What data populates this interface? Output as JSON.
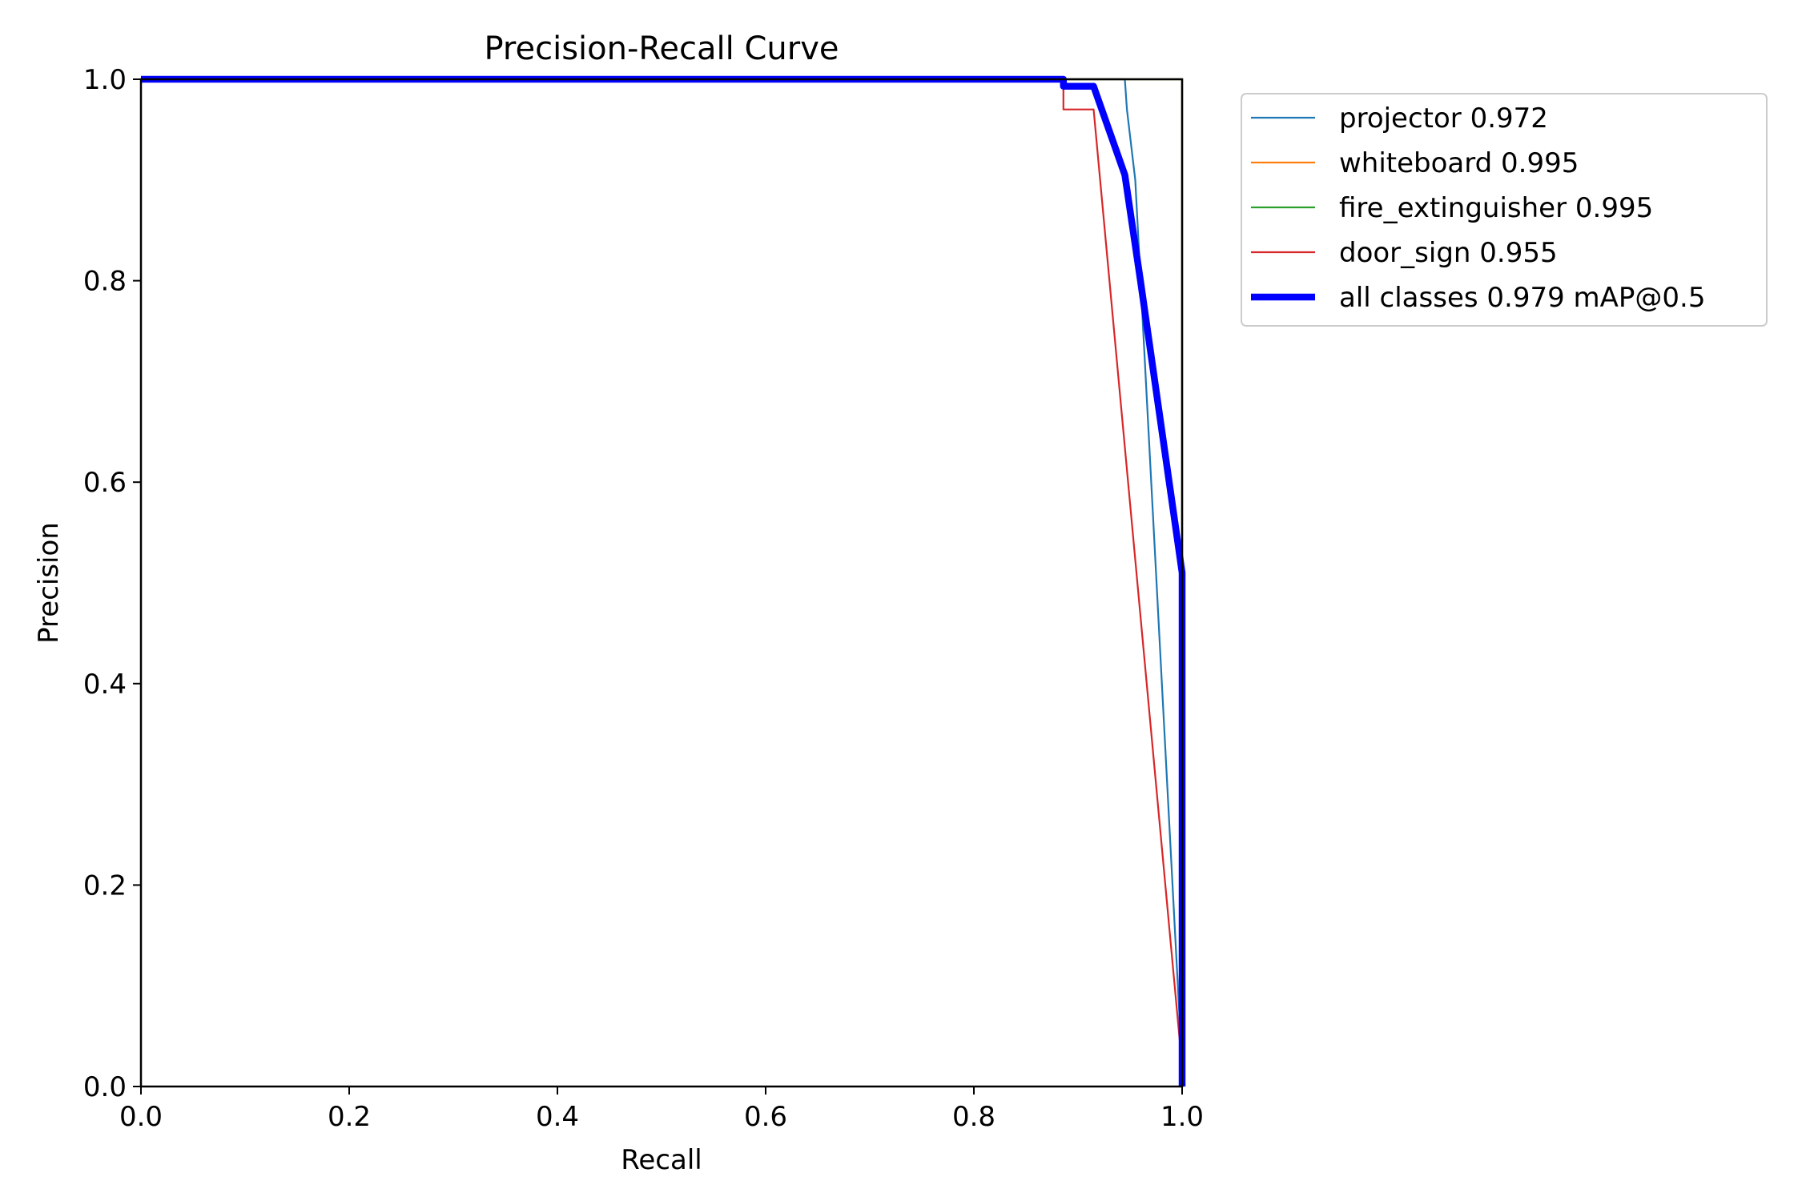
{
  "chart_data": {
    "type": "line",
    "title": "Precision-Recall Curve",
    "xlabel": "Recall",
    "ylabel": "Precision",
    "xlim": [
      0,
      1
    ],
    "ylim": [
      0,
      1
    ],
    "xticks": [
      "0.0",
      "0.2",
      "0.4",
      "0.6",
      "0.8",
      "1.0"
    ],
    "yticks": [
      "0.0",
      "0.2",
      "0.4",
      "0.6",
      "0.8",
      "1.0"
    ],
    "grid": false,
    "legend_position": "outside-top-right",
    "series": [
      {
        "name": "projector 0.972",
        "color": "#1f77b4",
        "style": "thin",
        "x": [
          0,
          0.945,
          0.947,
          0.955,
          1.0,
          1.0
        ],
        "y": [
          1.0,
          1.0,
          0.97,
          0.9,
          0.02,
          0.0
        ]
      },
      {
        "name": "whiteboard 0.995",
        "color": "#ff7f0e",
        "style": "thin",
        "x": [
          0,
          1.0,
          1.0
        ],
        "y": [
          1.0,
          1.0,
          0.0
        ]
      },
      {
        "name": "fire_extinguisher 0.995",
        "color": "#2ca02c",
        "style": "thin",
        "x": [
          0,
          1.0,
          1.0
        ],
        "y": [
          1.0,
          1.0,
          0.0
        ]
      },
      {
        "name": "door_sign 0.955",
        "color": "#d62728",
        "style": "thin",
        "x": [
          0,
          0.886,
          0.886,
          0.915,
          1.0,
          1.0
        ],
        "y": [
          1.0,
          1.0,
          0.97,
          0.97,
          0.02,
          0.0
        ]
      },
      {
        "name": "all classes 0.979 mAP@0.5",
        "color": "#0000ff",
        "style": "thick",
        "x": [
          0,
          0.886,
          0.886,
          0.915,
          0.945,
          0.96,
          1.0,
          1.0,
          1.0
        ],
        "y": [
          1.0,
          1.0,
          0.993,
          0.993,
          0.905,
          0.8,
          0.51,
          0.02,
          0.0
        ]
      }
    ]
  }
}
